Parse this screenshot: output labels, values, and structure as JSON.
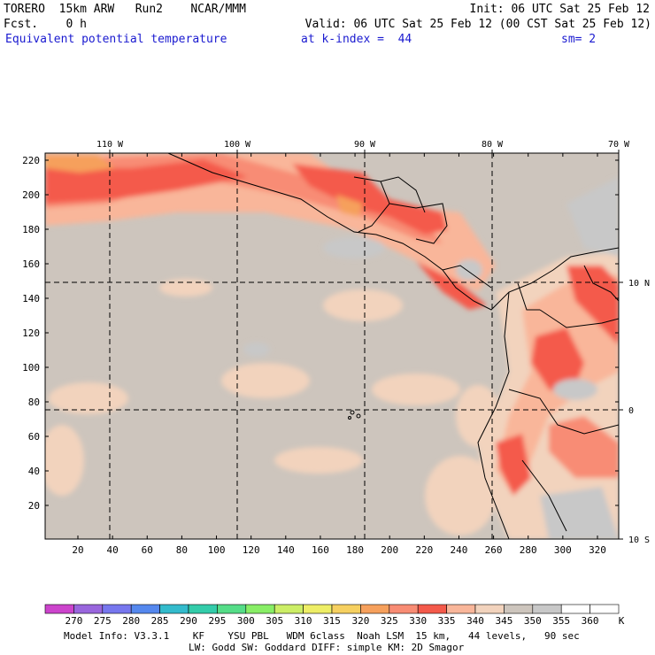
{
  "header": {
    "model": "TORERO  15km ARW   Run2    NCAR/MMM",
    "init": "Init: 06 UTC Sat 25 Feb 12",
    "fcst": "Fcst.    0 h",
    "valid": "Valid: 06 UTC Sat 25 Feb 12 (00 CST Sat 25 Feb 12)",
    "field": "Equivalent potential temperature",
    "level": "at k-index =  44",
    "smooth": "sm= 2"
  },
  "map": {
    "lon_labels": [
      "110 W",
      "100 W",
      "90 W",
      "80 W",
      "70 W"
    ],
    "lat_labels": [
      "10 N",
      "0",
      "10 S"
    ],
    "y_ticks": [
      "220",
      "200",
      "180",
      "160",
      "140",
      "120",
      "100",
      "80",
      "60",
      "40",
      "20"
    ],
    "x_ticks": [
      "20",
      "40",
      "60",
      "80",
      "100",
      "120",
      "140",
      "160",
      "180",
      "200",
      "220",
      "240",
      "260",
      "280",
      "300",
      "320"
    ],
    "colors": {
      "ocean": "#cdc5bd",
      "land_base": "#f2d3bd",
      "warm_low": "#f9b69a",
      "warm_mid": "#f88c74",
      "warm_high": "#f45a4b",
      "warm_max": "#f6a05c",
      "gray": "#c8c8c8"
    }
  },
  "colorbar": {
    "labels": [
      "270",
      "275",
      "280",
      "285",
      "290",
      "295",
      "300",
      "305",
      "310",
      "315",
      "320",
      "325",
      "330",
      "335",
      "340",
      "345",
      "350",
      "355",
      "360"
    ],
    "unit": "K",
    "colors": [
      "#cc44cc",
      "#9966dd",
      "#7777ee",
      "#5588ee",
      "#33bbcc",
      "#33ccaa",
      "#55dd88",
      "#88ee66",
      "#ccee66",
      "#eeee66",
      "#f6d060",
      "#f6a05c",
      "#f88c74",
      "#f45a4b",
      "#f9b69a",
      "#f2d3bd",
      "#cdc5bd",
      "#c8c8c8",
      "#ffffff",
      "#ffffff"
    ]
  },
  "footer": {
    "line1": "Model Info: V3.3.1    KF    YSU PBL   WDM 6class  Noah LSM  15 km,   44 levels,   90 sec",
    "line2": "LW: Godd SW: Goddard DIFF: simple KM: 2D Smagor"
  }
}
